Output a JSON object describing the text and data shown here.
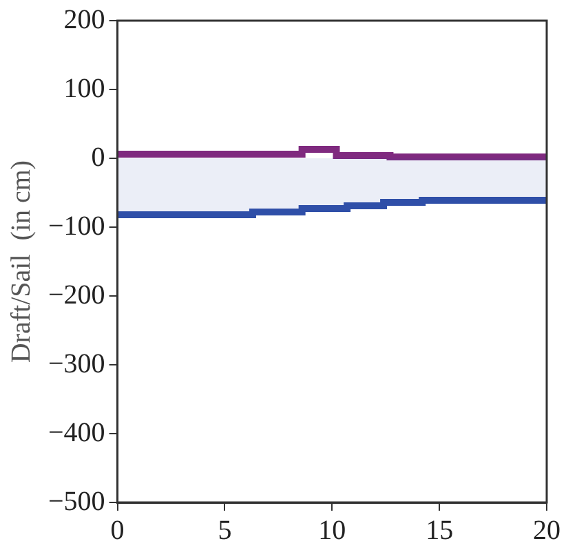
{
  "chart_data": {
    "type": "step",
    "ylabel": "Draft/Sail  (in cm)",
    "xlim": [
      0,
      20
    ],
    "xticks": [
      0,
      5,
      10,
      15,
      20
    ],
    "ylim": [
      -500,
      200
    ],
    "yticks": [
      -500,
      -400,
      -300,
      -200,
      -100,
      0,
      100,
      200
    ],
    "grid": false,
    "series": [
      {
        "type": "area",
        "color": "#2f4fa8",
        "x": [
          0,
          6.3,
          8.6,
          10.7,
          12.4,
          14.2,
          20
        ],
        "values": [
          -82,
          -78,
          -73,
          -69,
          -64,
          -61,
          -61
        ]
      },
      {
        "type": "step",
        "color": "#7f2a7f",
        "x": [
          0,
          8.6,
          10.2,
          12.7,
          20
        ],
        "values": [
          6,
          13,
          4,
          2,
          2
        ]
      }
    ]
  }
}
